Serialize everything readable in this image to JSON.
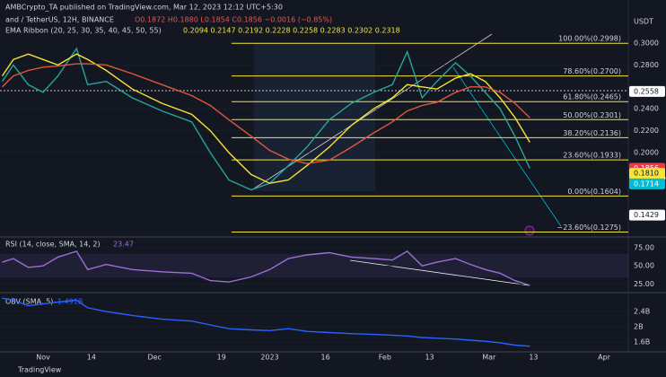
{
  "header": "AMBCrypto_TA published on TradingView.com, Mar 12, 2023 12:12 UTC+5:30",
  "footer": "TradingView",
  "chart_data": [
    {
      "type": "line",
      "title": "and / TetherUS, 12H, BINANCE",
      "ohlc_text": "O0.1872 H0.1880 L0.1854 C0.1856 −0.0016 (−0.85%)",
      "subtitle": "EMA Ribbon (20, 25, 30, 35, 40, 45, 50, 55)",
      "subtitle_values": "0.2094 0.2147 0.2192 0.2228 0.2258 0.2283 0.2302 0.2318",
      "axis_unit": "USDT",
      "x": [
        -11,
        -8,
        -4,
        0,
        4,
        9,
        12,
        17,
        24,
        32,
        40,
        45,
        50,
        56,
        61,
        66,
        71,
        77,
        83,
        89,
        94,
        98,
        102,
        106,
        111,
        115,
        119,
        123,
        127,
        131
      ],
      "series": [
        {
          "color": "#26a69a",
          "values": [
            0.265,
            0.28,
            0.262,
            0.255,
            0.27,
            0.295,
            0.262,
            0.265,
            0.25,
            0.238,
            0.228,
            0.2,
            0.175,
            0.166,
            0.172,
            0.188,
            0.205,
            0.23,
            0.245,
            0.255,
            0.262,
            0.292,
            0.25,
            0.265,
            0.282,
            0.27,
            0.255,
            0.24,
            0.215,
            0.1856
          ]
        },
        {
          "color": "#f5e536",
          "values": [
            0.27,
            0.285,
            0.29,
            0.285,
            0.28,
            0.29,
            0.285,
            0.275,
            0.258,
            0.245,
            0.235,
            0.22,
            0.2,
            0.18,
            0.172,
            0.175,
            0.188,
            0.205,
            0.225,
            0.24,
            0.25,
            0.262,
            0.26,
            0.258,
            0.268,
            0.272,
            0.265,
            0.25,
            0.232,
            0.2094
          ]
        },
        {
          "color": "#e0573a",
          "values": [
            0.26,
            0.27,
            0.275,
            0.278,
            0.279,
            0.281,
            0.281,
            0.28,
            0.272,
            0.262,
            0.252,
            0.243,
            0.23,
            0.215,
            0.202,
            0.194,
            0.19,
            0.193,
            0.205,
            0.218,
            0.228,
            0.238,
            0.243,
            0.246,
            0.255,
            0.26,
            0.26,
            0.255,
            0.245,
            0.2318
          ]
        }
      ],
      "xlim": [
        -11.6,
        157.5
      ],
      "ylim": [
        0.1246,
        0.3393
      ],
      "xticks": [
        {
          "value": 0,
          "label": "Nov"
        },
        {
          "value": 13,
          "label": "14"
        },
        {
          "value": 30,
          "label": "Dec"
        },
        {
          "value": 48,
          "label": "19"
        },
        {
          "value": 61,
          "label": "2023"
        },
        {
          "value": 76,
          "label": "16"
        },
        {
          "value": 92,
          "label": "Feb"
        },
        {
          "value": 104,
          "label": "13"
        },
        {
          "value": 120,
          "label": "Mar"
        },
        {
          "value": 132,
          "label": "13"
        },
        {
          "value": 151,
          "label": "Apr"
        }
      ],
      "yticks": [
        {
          "value": 0.3,
          "label": "0.3000"
        },
        {
          "value": 0.28,
          "label": "0.2800"
        },
        {
          "value": 0.24,
          "label": "0.2400"
        },
        {
          "value": 0.22,
          "label": "0.2200"
        },
        {
          "value": 0.2,
          "label": "0.2000"
        }
      ],
      "fib_levels": [
        {
          "value": 0.2998,
          "label": "100.00%(0.2998)"
        },
        {
          "value": 0.27,
          "label": "78.60%(0.2700)"
        },
        {
          "value": 0.2465,
          "label": "61.80%(0.2465)"
        },
        {
          "value": 0.2301,
          "label": "50.00%(0.2301)"
        },
        {
          "value": 0.2136,
          "label": "38.20%(0.2136)"
        },
        {
          "value": 0.1933,
          "label": "23.60%(0.1933)"
        },
        {
          "value": 0.1604,
          "label": "0.00%(0.1604)"
        },
        {
          "value": 0.1275,
          "label": "−23.60%(0.1275)"
        }
      ],
      "price_labels": [
        {
          "value": 0.2558,
          "label": "0.2558",
          "color": "#ffffff"
        },
        {
          "value": 0.1856,
          "label": "0.1856",
          "color": "#f23645"
        },
        {
          "value": 0.181,
          "label": "0.1810",
          "color": "#f5e536"
        },
        {
          "value": 0.1714,
          "label": "0.1714",
          "color": "#00bcd4"
        },
        {
          "value": 0.1429,
          "label": "0.1429",
          "color": "#ffffff"
        }
      ],
      "countdown": "05:17:39"
    },
    {
      "type": "line",
      "title": "RSI (14, close, SMA, 14, 2)",
      "last_value": "23.47",
      "x": [
        -11,
        -8,
        -4,
        0,
        4,
        9,
        12,
        17,
        24,
        32,
        40,
        45,
        50,
        56,
        61,
        66,
        71,
        77,
        83,
        89,
        94,
        98,
        102,
        106,
        111,
        115,
        119,
        123,
        127,
        131
      ],
      "series": [
        {
          "color": "#9c6fd6",
          "values": [
            55,
            60,
            48,
            50,
            62,
            70,
            45,
            52,
            45,
            42,
            40,
            30,
            28,
            35,
            45,
            60,
            65,
            68,
            62,
            60,
            58,
            70,
            50,
            55,
            60,
            52,
            45,
            40,
            30,
            23.47
          ]
        }
      ],
      "xlim": [
        -11.6,
        157.5
      ],
      "ylim": [
        16,
        87
      ],
      "yticks": [
        {
          "value": 75,
          "label": "75.00"
        },
        {
          "value": 50,
          "label": "50.00"
        },
        {
          "value": 25,
          "label": "25.00"
        }
      ]
    },
    {
      "type": "line",
      "title": "OBV (SMA, 5)",
      "last_value": "1.491B",
      "x": [
        -11,
        -8,
        -4,
        0,
        4,
        9,
        12,
        17,
        24,
        32,
        40,
        45,
        50,
        56,
        61,
        66,
        71,
        77,
        83,
        89,
        94,
        98,
        102,
        106,
        111,
        115,
        119,
        123,
        127,
        131
      ],
      "series": [
        {
          "color": "#2962ff",
          "values": [
            2.75,
            2.7,
            2.55,
            2.6,
            2.65,
            2.7,
            2.5,
            2.4,
            2.3,
            2.2,
            2.15,
            2.05,
            1.95,
            1.92,
            1.9,
            1.95,
            1.88,
            1.85,
            1.82,
            1.8,
            1.78,
            1.76,
            1.72,
            1.7,
            1.68,
            1.65,
            1.62,
            1.58,
            1.52,
            1.491
          ]
        }
      ],
      "xlim": [
        -11.6,
        157.5
      ],
      "ylim": [
        1.39,
        2.85
      ],
      "yticks": [
        {
          "value": 2.4,
          "label": "2.4B"
        },
        {
          "value": 2,
          "label": "2B"
        },
        {
          "value": 1.6,
          "label": "1.6B"
        }
      ]
    }
  ]
}
